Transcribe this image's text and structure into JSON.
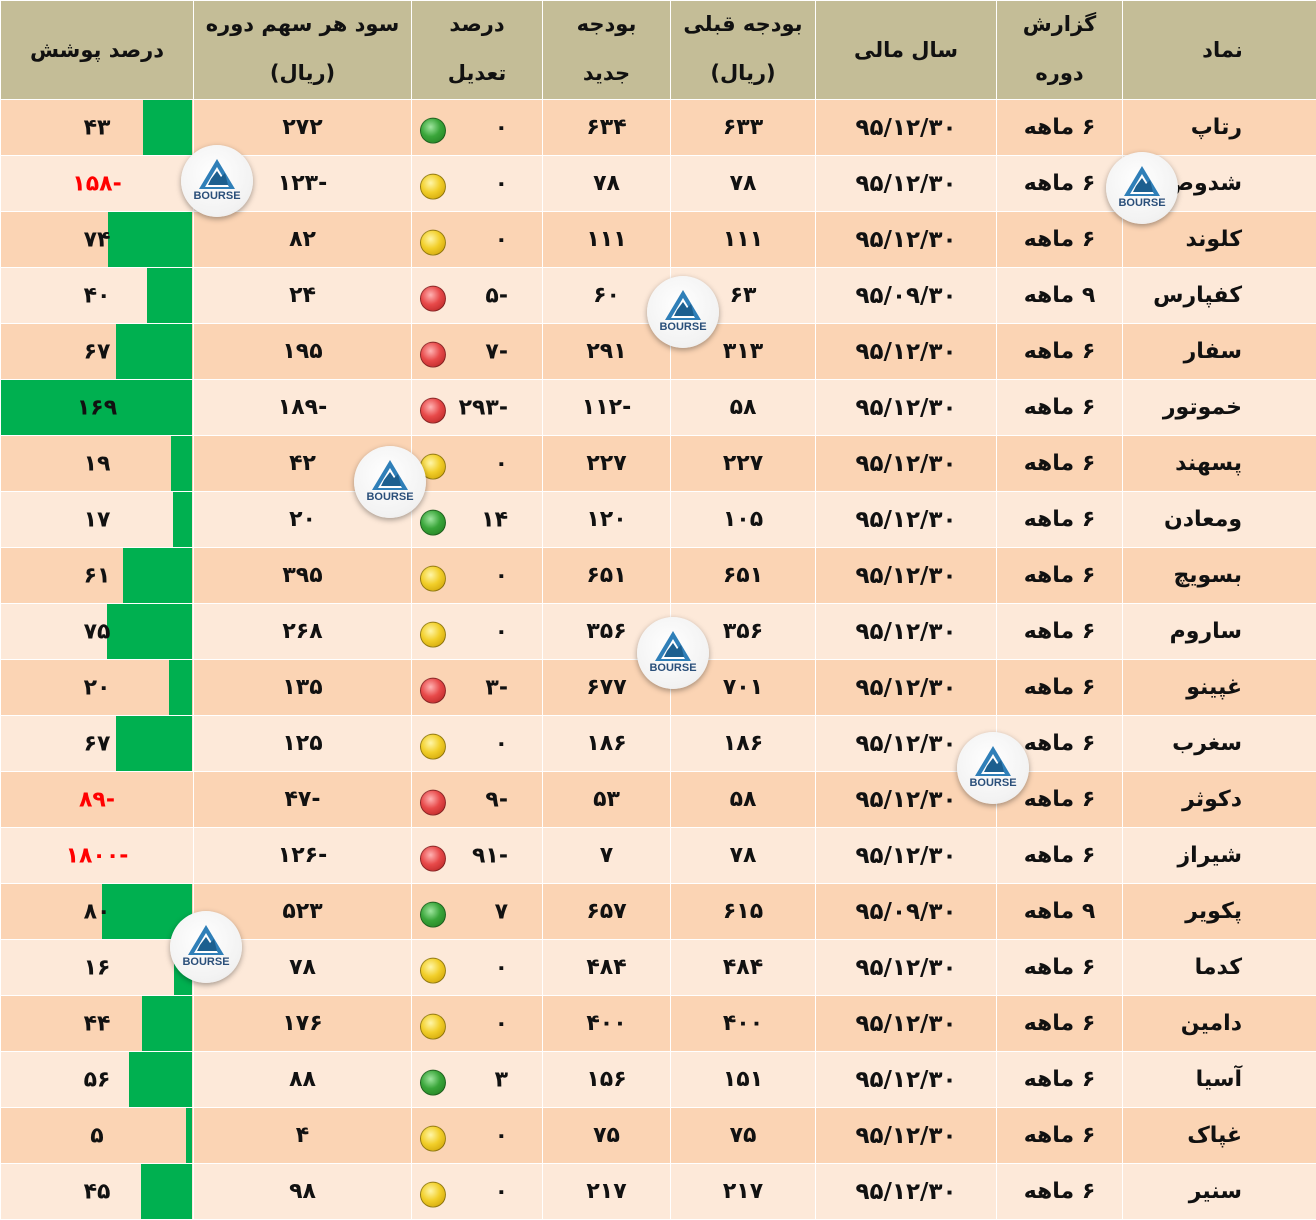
{
  "headers": {
    "symbol": "نماد",
    "period_line1": "گزارش",
    "period_line2": "دوره",
    "fiscal_year": "سال مالی",
    "prev_budget_line1": "بودجه قبلی",
    "prev_budget_line2": "(ریال)",
    "new_budget_line1": "بودجه",
    "new_budget_line2": "جدید",
    "adjust_line1": "درصد",
    "adjust_line2": "تعدیل",
    "eps_line1": "سود هر سهم دوره",
    "eps_line2": "(ریال)",
    "coverage": "درصد پوشش"
  },
  "colors": {
    "header_bg": "#c4bd97",
    "row_odd": "#fbd4b4",
    "row_even": "#fde9d9",
    "bar": "#00b050",
    "negative_text": "#ff0000"
  },
  "logo_text": "BOURSE",
  "rows": [
    {
      "symbol": "رتاپ",
      "period": "۶ ماهه",
      "fy": "۹۵/۱۲/۳۰",
      "prev": "۶۳۳",
      "new": "۶۳۴",
      "adj": "۰",
      "light": "green",
      "eps": "۲۷۲",
      "cov": "۴۳",
      "cov_pct": 43,
      "neg": false
    },
    {
      "symbol": "شدوص",
      "period": "۶ ماهه",
      "fy": "۹۵/۱۲/۳۰",
      "prev": "۷۸",
      "new": "۷۸",
      "adj": "۰",
      "light": "yellow",
      "eps": "-۱۲۳",
      "cov": "-۱۵۸",
      "cov_pct": 0,
      "neg": true
    },
    {
      "symbol": "کلوند",
      "period": "۶ ماهه",
      "fy": "۹۵/۱۲/۳۰",
      "prev": "۱۱۱",
      "new": "۱۱۱",
      "adj": "۰",
      "light": "yellow",
      "eps": "۸۲",
      "cov": "۷۴",
      "cov_pct": 74,
      "neg": false
    },
    {
      "symbol": "کفپارس",
      "period": "۹ ماهه",
      "fy": "۹۵/۰۹/۳۰",
      "prev": "۶۳",
      "new": "۶۰",
      "adj": "-۵",
      "light": "red",
      "eps": "۲۴",
      "cov": "۴۰",
      "cov_pct": 40,
      "neg": false
    },
    {
      "symbol": "سفار",
      "period": "۶ ماهه",
      "fy": "۹۵/۱۲/۳۰",
      "prev": "۳۱۳",
      "new": "۲۹۱",
      "adj": "-۷",
      "light": "red",
      "eps": "۱۹۵",
      "cov": "۶۷",
      "cov_pct": 67,
      "neg": false
    },
    {
      "symbol": "خموتور",
      "period": "۶ ماهه",
      "fy": "۹۵/۱۲/۳۰",
      "prev": "۵۸",
      "new": "-۱۱۲",
      "adj": "-۲۹۳",
      "light": "red",
      "eps": "-۱۸۹",
      "cov": "۱۶۹",
      "cov_pct": 169,
      "neg": false
    },
    {
      "symbol": "پسهند",
      "period": "۶ ماهه",
      "fy": "۹۵/۱۲/۳۰",
      "prev": "۲۲۷",
      "new": "۲۲۷",
      "adj": "۰",
      "light": "yellow",
      "eps": "۴۲",
      "cov": "۱۹",
      "cov_pct": 19,
      "neg": false
    },
    {
      "symbol": "ومعادن",
      "period": "۶ ماهه",
      "fy": "۹۵/۱۲/۳۰",
      "prev": "۱۰۵",
      "new": "۱۲۰",
      "adj": "۱۴",
      "light": "green",
      "eps": "۲۰",
      "cov": "۱۷",
      "cov_pct": 17,
      "neg": false
    },
    {
      "symbol": "بسویچ",
      "period": "۶ ماهه",
      "fy": "۹۵/۱۲/۳۰",
      "prev": "۶۵۱",
      "new": "۶۵۱",
      "adj": "۰",
      "light": "yellow",
      "eps": "۳۹۵",
      "cov": "۶۱",
      "cov_pct": 61,
      "neg": false
    },
    {
      "symbol": "ساروم",
      "period": "۶ ماهه",
      "fy": "۹۵/۱۲/۳۰",
      "prev": "۳۵۶",
      "new": "۳۵۶",
      "adj": "۰",
      "light": "yellow",
      "eps": "۲۶۸",
      "cov": "۷۵",
      "cov_pct": 75,
      "neg": false
    },
    {
      "symbol": "غپینو",
      "period": "۶ ماهه",
      "fy": "۹۵/۱۲/۳۰",
      "prev": "۷۰۱",
      "new": "۶۷۷",
      "adj": "-۳",
      "light": "red",
      "eps": "۱۳۵",
      "cov": "۲۰",
      "cov_pct": 20,
      "neg": false
    },
    {
      "symbol": "سغرب",
      "period": "۶ ماهه",
      "fy": "۹۵/۱۲/۳۰",
      "prev": "۱۸۶",
      "new": "۱۸۶",
      "adj": "۰",
      "light": "yellow",
      "eps": "۱۲۵",
      "cov": "۶۷",
      "cov_pct": 67,
      "neg": false
    },
    {
      "symbol": "دکوثر",
      "period": "۶ ماهه",
      "fy": "۹۵/۱۲/۳۰",
      "prev": "۵۸",
      "new": "۵۳",
      "adj": "-۹",
      "light": "red",
      "eps": "-۴۷",
      "cov": "-۸۹",
      "cov_pct": 0,
      "neg": true
    },
    {
      "symbol": "شیراز",
      "period": "۶ ماهه",
      "fy": "۹۵/۱۲/۳۰",
      "prev": "۷۸",
      "new": "۷",
      "adj": "-۹۱",
      "light": "red",
      "eps": "-۱۲۶",
      "cov": "-۱۸۰۰",
      "cov_pct": 0,
      "neg": true
    },
    {
      "symbol": "پکویر",
      "period": "۹ ماهه",
      "fy": "۹۵/۰۹/۳۰",
      "prev": "۶۱۵",
      "new": "۶۵۷",
      "adj": "۷",
      "light": "green",
      "eps": "۵۲۳",
      "cov": "۸۰",
      "cov_pct": 80,
      "neg": false
    },
    {
      "symbol": "کدما",
      "period": "۶ ماهه",
      "fy": "۹۵/۱۲/۳۰",
      "prev": "۴۸۴",
      "new": "۴۸۴",
      "adj": "۰",
      "light": "yellow",
      "eps": "۷۸",
      "cov": "۱۶",
      "cov_pct": 16,
      "neg": false
    },
    {
      "symbol": "دامین",
      "period": "۶ ماهه",
      "fy": "۹۵/۱۲/۳۰",
      "prev": "۴۰۰",
      "new": "۴۰۰",
      "adj": "۰",
      "light": "yellow",
      "eps": "۱۷۶",
      "cov": "۴۴",
      "cov_pct": 44,
      "neg": false
    },
    {
      "symbol": "آسیا",
      "period": "۶ ماهه",
      "fy": "۹۵/۱۲/۳۰",
      "prev": "۱۵۱",
      "new": "۱۵۶",
      "adj": "۳",
      "light": "green",
      "eps": "۸۸",
      "cov": "۵۶",
      "cov_pct": 56,
      "neg": false
    },
    {
      "symbol": "غپاک",
      "period": "۶ ماهه",
      "fy": "۹۵/۱۲/۳۰",
      "prev": "۷۵",
      "new": "۷۵",
      "adj": "۰",
      "light": "yellow",
      "eps": "۴",
      "cov": "۵",
      "cov_pct": 5,
      "neg": false
    },
    {
      "symbol": "سنیر",
      "period": "۶ ماهه",
      "fy": "۹۵/۱۲/۳۰",
      "prev": "۲۱۷",
      "new": "۲۱۷",
      "adj": "۰",
      "light": "yellow",
      "eps": "۹۸",
      "cov": "۴۵",
      "cov_pct": 45,
      "neg": false
    }
  ]
}
